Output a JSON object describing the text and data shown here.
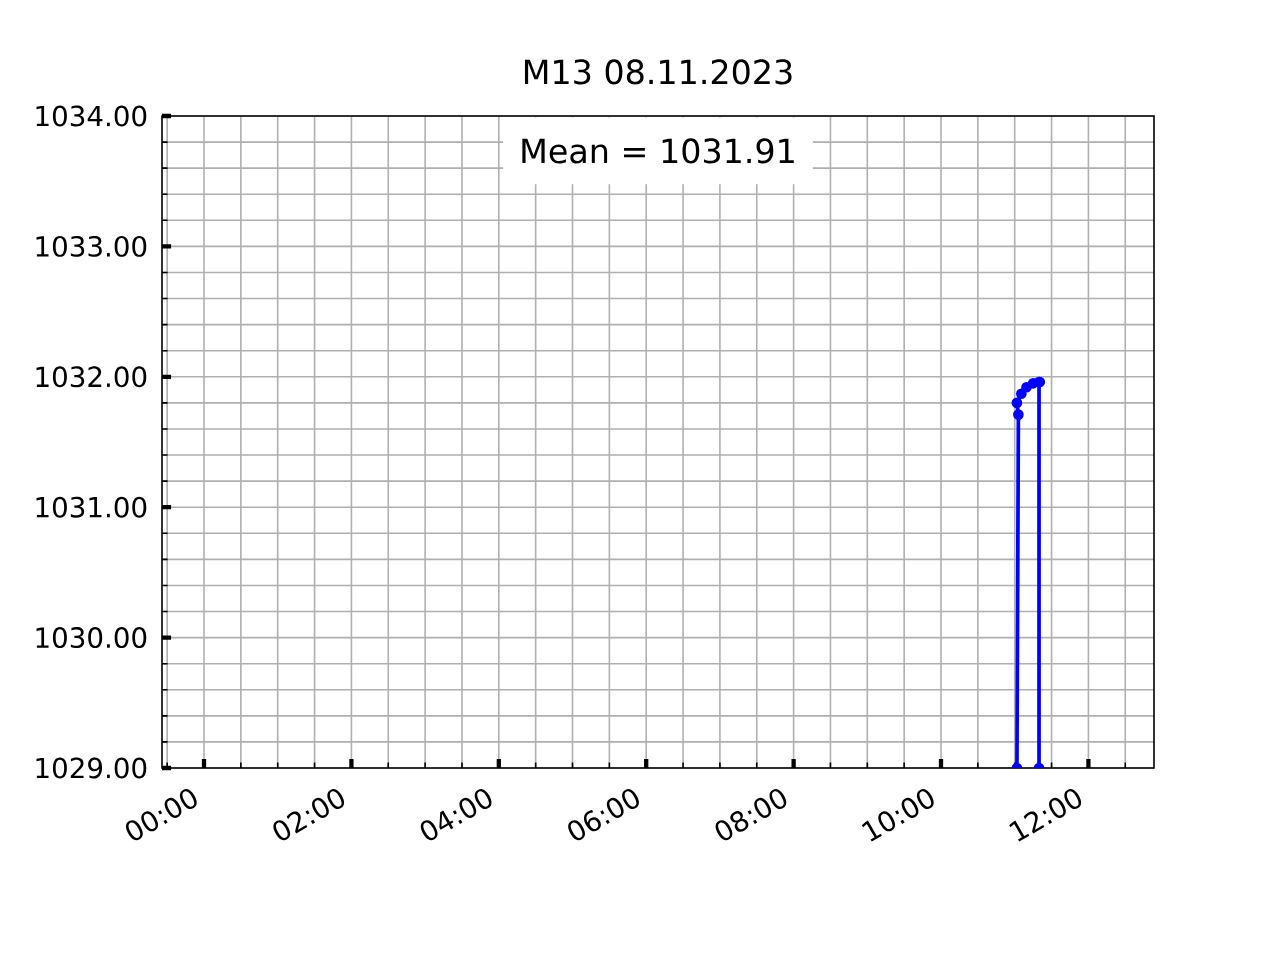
{
  "chart_data": {
    "type": "line",
    "title": "M13 08.11.2023",
    "annotations": [
      "Mean = 1031.91"
    ],
    "x": [
      11.03,
      11.05,
      11.03,
      11.09,
      11.16,
      11.25,
      11.34,
      11.33,
      11.33
    ],
    "values": [
      1029,
      1031.71,
      1031.8,
      1031.87,
      1031.92,
      1031.95,
      1031.96,
      1031.96,
      1029
    ],
    "color": "#0000ff",
    "marker": "circle",
    "line_style": "solid",
    "grid": true,
    "xlim": [
      -0.57,
      12.89
    ],
    "ylim": [
      1029,
      1034
    ],
    "xticks": [
      {
        "value": 0,
        "label": "00:00"
      },
      {
        "value": 2,
        "label": "02:00"
      },
      {
        "value": 4,
        "label": "04:00"
      },
      {
        "value": 6,
        "label": "06:00"
      },
      {
        "value": 8,
        "label": "08:00"
      },
      {
        "value": 10,
        "label": "10:00"
      },
      {
        "value": 12,
        "label": "12:00"
      }
    ],
    "yticks": [
      {
        "value": 1029,
        "label": "1029.00"
      },
      {
        "value": 1030,
        "label": "1030.00"
      },
      {
        "value": 1031,
        "label": "1031.00"
      },
      {
        "value": 1032,
        "label": "1032.00"
      },
      {
        "value": 1033,
        "label": "1033.00"
      },
      {
        "value": 1034,
        "label": "1034.00"
      }
    ]
  }
}
